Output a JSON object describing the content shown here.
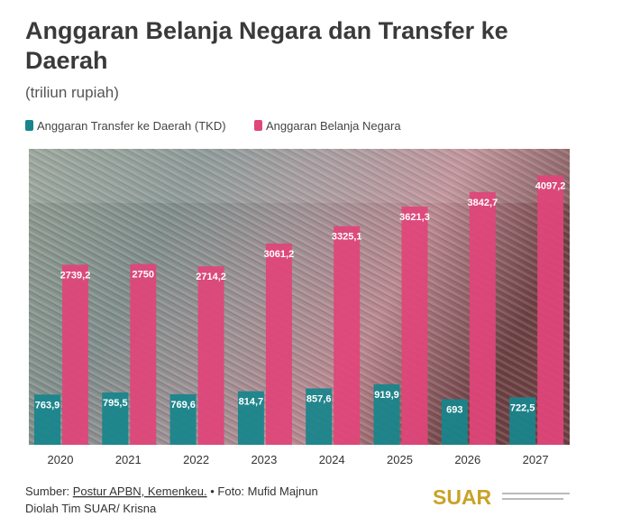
{
  "chart_data": {
    "type": "bar",
    "title": "Anggaran Belanja Negara dan Transfer ke Daerah",
    "subtitle": "(triliun rupiah)",
    "categories": [
      "2020",
      "2021",
      "2022",
      "2023",
      "2024",
      "2025",
      "2026",
      "2027"
    ],
    "series": [
      {
        "name": "Anggaran Transfer ke Daerah (TKD)",
        "color": "#17858c",
        "values": [
          763.9,
          795.5,
          769.6,
          814.7,
          857.6,
          919.9,
          693,
          722.5
        ],
        "value_labels": [
          "763,9",
          "795,5",
          "769,6",
          "814,7",
          "857,6",
          "919,9",
          "693",
          "722,5"
        ]
      },
      {
        "name": "Anggaran Belanja Negara",
        "color": "#e0457a",
        "values": [
          2739.2,
          2750,
          2714.2,
          3061.2,
          3325.1,
          3621.3,
          3842.7,
          4097.2
        ],
        "value_labels": [
          "2739,2",
          "2750",
          "2714,2",
          "3061,2",
          "3325,1",
          "3621,3",
          "3842,7",
          "4097,2"
        ]
      }
    ],
    "ylim": [
      0,
      4500
    ],
    "source": [
      "Sumber:",
      "Postur APBN, Kemenkeu.",
      "• Foto: Mufid Majnun"
    ],
    "credit": "Diolah Tim SUAR/ Krisna",
    "logo": "SUAR"
  }
}
